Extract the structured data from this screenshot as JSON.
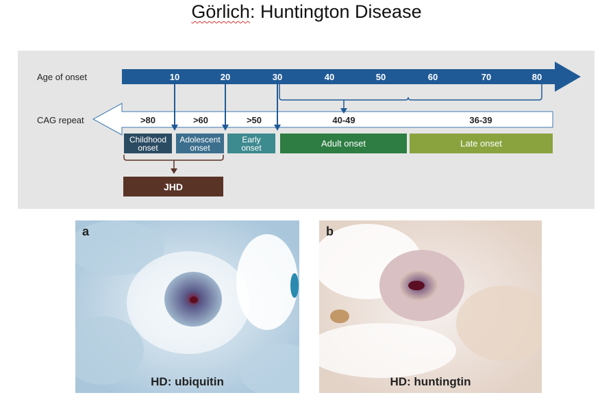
{
  "title": {
    "author": "Görlich",
    "rest": ": Huntington Disease"
  },
  "diagram": {
    "age_label": "Age of onset",
    "cag_label": "CAG repeat",
    "age_ticks": [
      "10",
      "20",
      "30",
      "40",
      "50",
      "60",
      "70",
      "80"
    ],
    "cag_values": [
      ">80",
      ">60",
      ">50",
      "40-49",
      "36-39"
    ],
    "stages": [
      {
        "label_line1": "Childhood",
        "label_line2": "onset",
        "color": "#2b4b63"
      },
      {
        "label_line1": "Adolescent",
        "label_line2": "onset",
        "color": "#3c6f8e"
      },
      {
        "label_line1": "Early",
        "label_line2": "onset",
        "color": "#3d8a8f"
      },
      {
        "label_line1": "Adult onset",
        "label_line2": "",
        "color": "#2e7d43"
      },
      {
        "label_line1": "Late onset",
        "label_line2": "",
        "color": "#8aa33f"
      }
    ],
    "jhd": "JHD",
    "arrow_color": "#1f5a96",
    "jhd_color": "#5a3327"
  },
  "panels": [
    {
      "letter": "a",
      "caption": "HD: ubiquitin"
    },
    {
      "letter": "b",
      "caption": "HD: huntingtin"
    }
  ]
}
